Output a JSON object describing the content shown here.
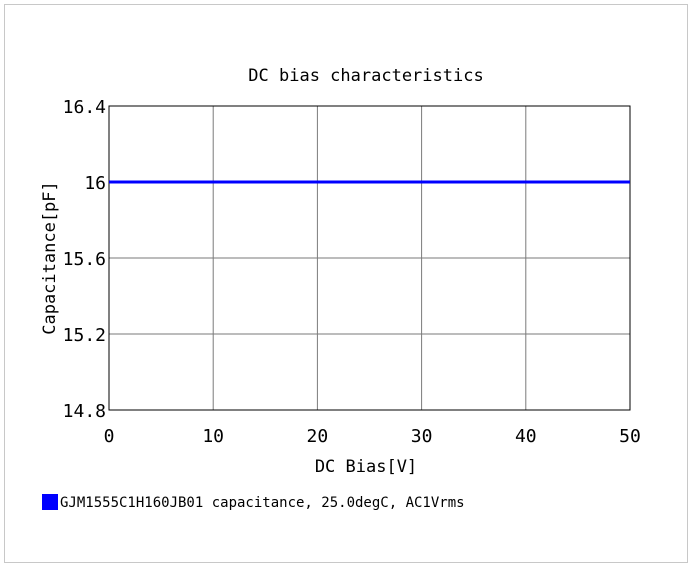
{
  "chart_data": {
    "type": "line",
    "title": "DC bias characteristics",
    "xlabel": "DC Bias[V]",
    "ylabel": "Capacitance[pF]",
    "xlim": [
      0,
      50
    ],
    "ylim": [
      14.8,
      16.4
    ],
    "x_ticks": [
      0,
      10,
      20,
      30,
      40,
      50
    ],
    "x_tick_labels": [
      "0",
      "10",
      "20",
      "30",
      "40",
      "50"
    ],
    "y_ticks": [
      14.8,
      15.2,
      15.6,
      16.0,
      16.4
    ],
    "y_tick_labels": [
      "14.8",
      "15.2",
      "15.6",
      "16",
      "16.4"
    ],
    "grid": true,
    "legend_position": "bottom-left",
    "series": [
      {
        "name": "GJM1555C1H160JB01 capacitance, 25.0degC, AC1Vrms",
        "color": "#0000ff",
        "x": [
          0,
          5,
          10,
          15,
          20,
          25,
          30,
          35,
          40,
          45,
          50
        ],
        "y": [
          16.0,
          16.0,
          16.0,
          16.0,
          16.0,
          16.0,
          16.0,
          16.0,
          16.0,
          16.0,
          16.0
        ]
      }
    ]
  }
}
